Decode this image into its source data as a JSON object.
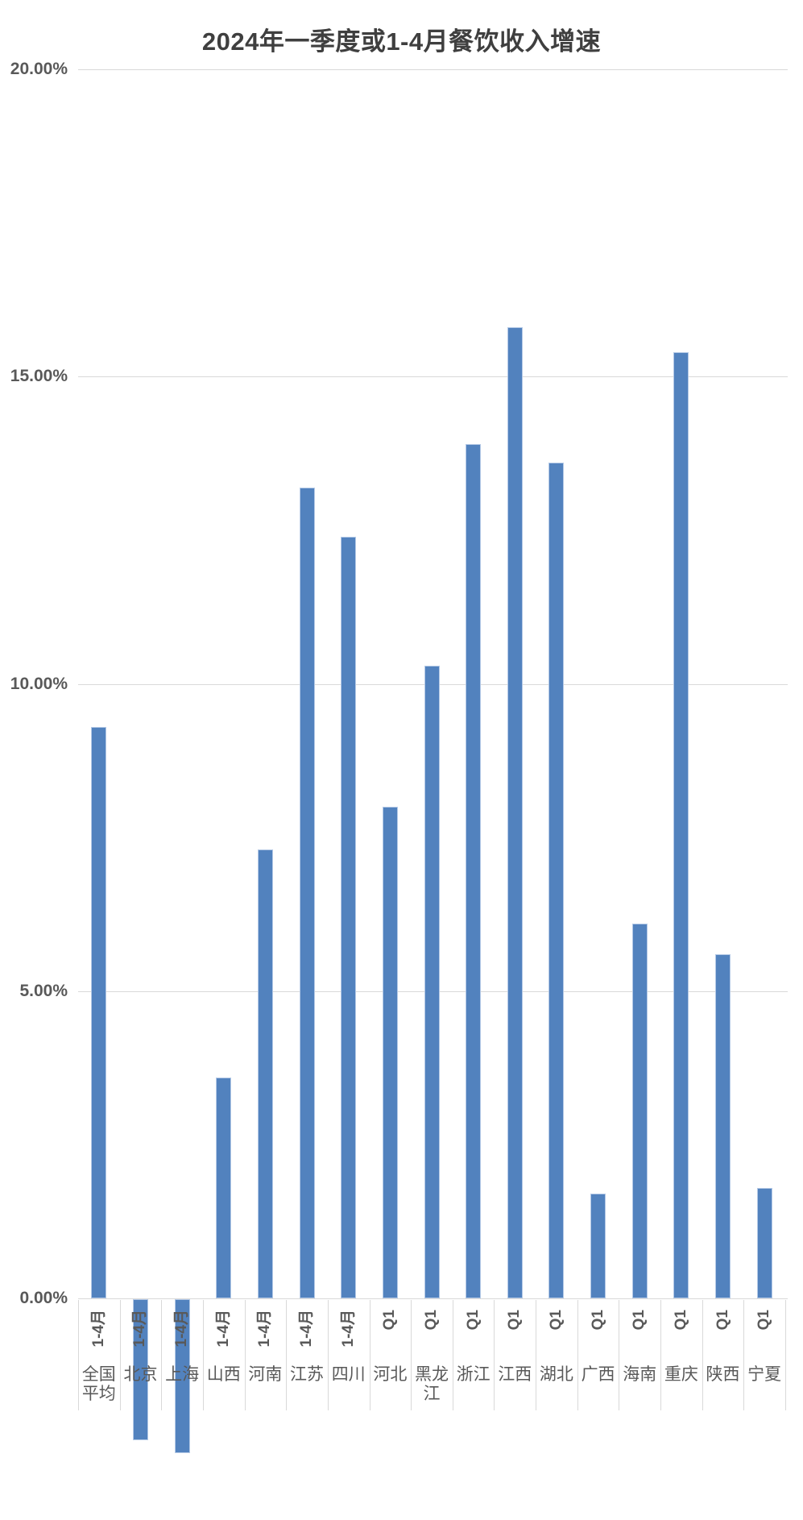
{
  "title": "2024年一季度或1-4月餐饮收入增速",
  "chart_data": {
    "type": "bar",
    "title": "2024年一季度或1-4月餐饮收入增速",
    "categories": [
      "全国平均",
      "北京",
      "上海",
      "山西",
      "河南",
      "江苏",
      "四川",
      "河北",
      "黑龙江",
      "浙江",
      "江西",
      "湖北",
      "广西",
      "海南",
      "重庆",
      "陕西",
      "宁夏"
    ],
    "period_labels": [
      "1-4月",
      "1-4月",
      "1-4月",
      "1-4月",
      "1-4月",
      "1-4月",
      "1-4月",
      "Q1",
      "Q1",
      "Q1",
      "Q1",
      "Q1",
      "Q1",
      "Q1",
      "Q1",
      "Q1",
      "Q1"
    ],
    "values": [
      9.3,
      -2.3,
      -2.5,
      3.6,
      7.3,
      13.2,
      12.4,
      8.0,
      10.3,
      13.9,
      15.8,
      13.6,
      1.7,
      6.1,
      15.4,
      5.6,
      1.8
    ],
    "unit": "%",
    "ylabel": "",
    "xlabel": "",
    "y_ticks": [
      "20.00%",
      "15.00%",
      "10.00%",
      "5.00%",
      "0.00%"
    ],
    "y_tick_values": [
      20,
      15,
      10,
      5,
      0
    ],
    "ylim": [
      -2.6,
      20
    ],
    "grid": true,
    "legend": false,
    "colors": {
      "bar_fill": "#5282be",
      "bar_border": "#b4c9e6",
      "gridline": "#d9d9d9",
      "tick_label": "#595959",
      "title": "#3f3f3f"
    }
  }
}
